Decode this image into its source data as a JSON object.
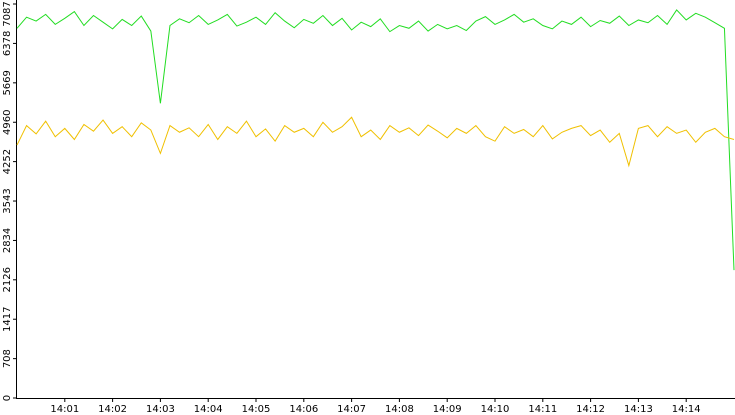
{
  "chart_data": {
    "type": "line",
    "x": [
      0,
      0.2,
      0.4,
      0.6,
      0.8,
      1,
      1.2,
      1.4,
      1.6,
      1.8,
      2,
      2.2,
      2.4,
      2.6,
      2.8,
      3,
      3.2,
      3.4,
      3.6,
      3.8,
      4,
      4.2,
      4.4,
      4.6,
      4.8,
      5,
      5.2,
      5.4,
      5.6,
      5.8,
      6,
      6.2,
      6.4,
      6.6,
      6.8,
      7,
      7.2,
      7.4,
      7.6,
      7.8,
      8,
      8.2,
      8.4,
      8.6,
      8.8,
      9,
      9.2,
      9.4,
      9.6,
      9.8,
      10,
      10.2,
      10.4,
      10.6,
      10.8,
      11,
      11.2,
      11.4,
      11.6,
      11.8,
      12,
      12.2,
      12.4,
      12.6,
      12.8,
      13,
      13.2,
      13.4,
      13.6,
      13.8,
      14,
      14.2,
      14.4,
      14.6,
      14.8,
      15
    ],
    "series": [
      {
        "color": "#22dd22",
        "values": [
          6650,
          6850,
          6780,
          6900,
          6720,
          6830,
          6950,
          6700,
          6880,
          6760,
          6640,
          6810,
          6700,
          6870,
          6600,
          5300,
          6700,
          6820,
          6750,
          6880,
          6720,
          6800,
          6900,
          6690,
          6760,
          6850,
          6720,
          6930,
          6780,
          6660,
          6810,
          6740,
          6880,
          6700,
          6830,
          6620,
          6760,
          6680,
          6820,
          6590,
          6700,
          6650,
          6780,
          6600,
          6720,
          6640,
          6700,
          6610,
          6780,
          6860,
          6720,
          6800,
          6900,
          6760,
          6820,
          6700,
          6640,
          6780,
          6720,
          6850,
          6680,
          6790,
          6740,
          6870,
          6700,
          6800,
          6750,
          6880,
          6720,
          6980,
          6800,
          6920,
          6850,
          6750,
          6650,
          2300
        ]
      },
      {
        "color": "#f0c000",
        "values": [
          4550,
          4900,
          4750,
          4980,
          4700,
          4850,
          4650,
          4920,
          4800,
          5000,
          4760,
          4880,
          4700,
          4950,
          4820,
          4400,
          4900,
          4780,
          4860,
          4700,
          4920,
          4650,
          4880,
          4760,
          4980,
          4700,
          4840,
          4620,
          4900,
          4780,
          4850,
          4700,
          4960,
          4780,
          4880,
          5050,
          4700,
          4820,
          4650,
          4900,
          4780,
          4860,
          4720,
          4910,
          4800,
          4680,
          4850,
          4760,
          4900,
          4700,
          4620,
          4880,
          4760,
          4830,
          4700,
          4900,
          4660,
          4780,
          4850,
          4900,
          4720,
          4820,
          4600,
          4760,
          4180,
          4850,
          4900,
          4700,
          4880,
          4760,
          4820,
          4600,
          4780,
          4850,
          4700,
          4650
        ]
      }
    ],
    "xlim": [
      0,
      15
    ],
    "xticks": [
      {
        "value": 1,
        "label": "14:01"
      },
      {
        "value": 2,
        "label": "14:02"
      },
      {
        "value": 3,
        "label": "14:03"
      },
      {
        "value": 4,
        "label": "14:04"
      },
      {
        "value": 5,
        "label": "14:05"
      },
      {
        "value": 6,
        "label": "14:06"
      },
      {
        "value": 7,
        "label": "14:07"
      },
      {
        "value": 8,
        "label": "14:08"
      },
      {
        "value": 9,
        "label": "14:09"
      },
      {
        "value": 10,
        "label": "14:10"
      },
      {
        "value": 11,
        "label": "14:11"
      },
      {
        "value": 12,
        "label": "14:12"
      },
      {
        "value": 13,
        "label": "14:13"
      },
      {
        "value": 14,
        "label": "14:14"
      }
    ],
    "ylim": [
      0,
      7087
    ],
    "yticks": [
      0,
      708,
      1417,
      2126,
      2834,
      3543,
      4252,
      4960,
      5669,
      6378,
      7087
    ]
  }
}
